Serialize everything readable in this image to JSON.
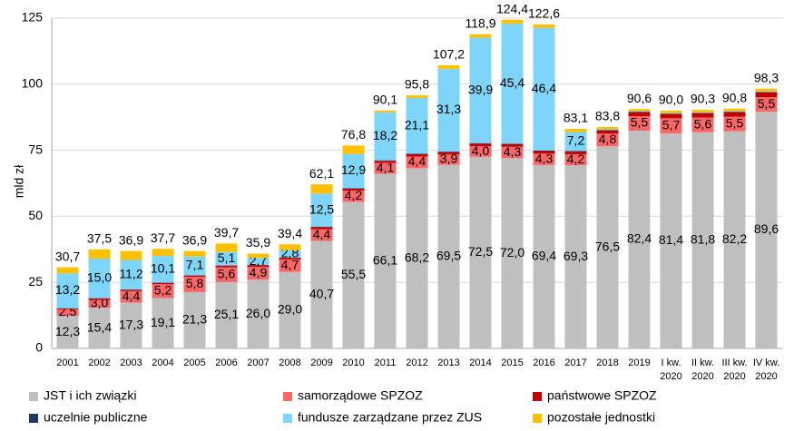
{
  "chart_data": {
    "type": "stacked_bar",
    "y_label": "mld zł",
    "categories": [
      "2001",
      "2002",
      "2003",
      "2004",
      "2005",
      "2006",
      "2007",
      "2008",
      "2009",
      "2010",
      "2011",
      "2012",
      "2013",
      "2014",
      "2015",
      "2016",
      "2017",
      "2018",
      "2019",
      "I kw. 2020",
      "II kw. 2020",
      "III kw. 2020",
      "IV kw. 2020"
    ],
    "ylim": [
      0,
      125
    ],
    "yticks": [
      0,
      25,
      50,
      75,
      100,
      125
    ],
    "grid": true,
    "legend": "bottom",
    "series": [
      {
        "name": "JST i ich związki",
        "color": "#bfbfbf",
        "values": [
          12.3,
          15.4,
          17.3,
          19.1,
          21.3,
          25.1,
          26.0,
          29.0,
          40.7,
          55.5,
          66.1,
          68.2,
          69.5,
          72.5,
          72.0,
          69.4,
          69.3,
          76.5,
          82.4,
          81.4,
          81.8,
          82.2,
          89.6
        ],
        "value_labels": [
          "12,3",
          "15,4",
          "17,3",
          "19,1",
          "21,3",
          "25,1",
          "26,0",
          "29,0",
          "40,7",
          "55,5",
          "66,1",
          "68,2",
          "69,5",
          "72,5",
          "72,0",
          "69,4",
          "69,3",
          "76,5",
          "82,4",
          "81,4",
          "81,8",
          "82,2",
          "89,6"
        ]
      },
      {
        "name": "samorządowe SPZOZ",
        "color": "#ff6666",
        "values": [
          2.5,
          3.0,
          4.4,
          5.2,
          5.8,
          5.6,
          4.9,
          4.7,
          4.4,
          4.2,
          4.1,
          4.4,
          3.9,
          4.0,
          4.3,
          4.3,
          4.2,
          4.8,
          5.5,
          5.7,
          5.6,
          5.5,
          5.5
        ],
        "value_labels": [
          "2,5",
          "3,0",
          "4,4",
          "5,2",
          "5,8",
          "5,6",
          "4,9",
          "4,7",
          "4,4",
          "4,2",
          "4,1",
          "4,4",
          "3,9",
          "4,0",
          "4,3",
          "4,3",
          "4,2",
          "4,8",
          "5,5",
          "5,7",
          "5,6",
          "5,5",
          "5,5"
        ]
      },
      {
        "name": "państwowe SPZOZ",
        "color": "#c00000",
        "values": [
          0.3,
          0.5,
          0.5,
          0.5,
          0.5,
          0.6,
          0.6,
          0.6,
          0.8,
          0.8,
          0.8,
          0.9,
          0.9,
          1.0,
          1.0,
          1.0,
          1.0,
          1.2,
          1.5,
          1.6,
          1.6,
          1.7,
          1.8
        ]
      },
      {
        "name": "uczelnie publiczne",
        "color": "#1f3864",
        "values": [
          0.1,
          0.1,
          0.1,
          0.1,
          0.1,
          0.1,
          0.1,
          0.1,
          0.2,
          0.2,
          0.2,
          0.2,
          0.2,
          0.2,
          0.2,
          0.2,
          0.2,
          0.2,
          0.2,
          0.2,
          0.2,
          0.2,
          0.2
        ]
      },
      {
        "name": "fundusze zarządzane przez ZUS",
        "color": "#7fd4f9",
        "values": [
          13.2,
          15.0,
          11.2,
          10.1,
          7.1,
          5.1,
          2.7,
          2.8,
          12.5,
          12.9,
          18.2,
          21.1,
          31.3,
          39.9,
          45.4,
          46.4,
          7.2,
          0.3,
          0.2,
          0.2,
          0.2,
          0.2,
          0.2
        ],
        "value_labels": [
          "13,2",
          "15,0",
          "11,2",
          "10,1",
          "7,1",
          "5,1",
          "2,7",
          "2,8",
          "12,5",
          "12,9",
          "18,2",
          "21,1",
          "31,3",
          "39,9",
          "45,4",
          "46,4",
          "7,2",
          null,
          null,
          null,
          null,
          null,
          null
        ]
      },
      {
        "name": "pozostałe jednostki",
        "color": "#ffc000",
        "values": [
          2.3,
          3.5,
          3.4,
          2.7,
          2.1,
          3.2,
          1.6,
          2.2,
          3.5,
          3.2,
          0.7,
          1.0,
          1.4,
          1.3,
          1.5,
          1.3,
          1.2,
          0.8,
          0.8,
          0.9,
          0.9,
          1.0,
          1.0
        ]
      }
    ],
    "totals": [
      30.7,
      37.5,
      36.9,
      37.7,
      36.9,
      39.7,
      35.9,
      39.4,
      62.1,
      76.8,
      90.1,
      95.8,
      107.2,
      118.9,
      124.4,
      122.6,
      83.1,
      83.8,
      90.6,
      90.0,
      90.3,
      90.8,
      98.3
    ],
    "total_labels": [
      "30,7",
      "37,5",
      "36,9",
      "37,7",
      "36,9",
      "39,7",
      "35,9",
      "39,4",
      "62,1",
      "76,8",
      "90,1",
      "95,8",
      "107,2",
      "118,9",
      "124,4",
      "122,6",
      "83,1",
      "83,8",
      "90,6",
      "90,0",
      "90,3",
      "90,8",
      "98,3"
    ]
  }
}
